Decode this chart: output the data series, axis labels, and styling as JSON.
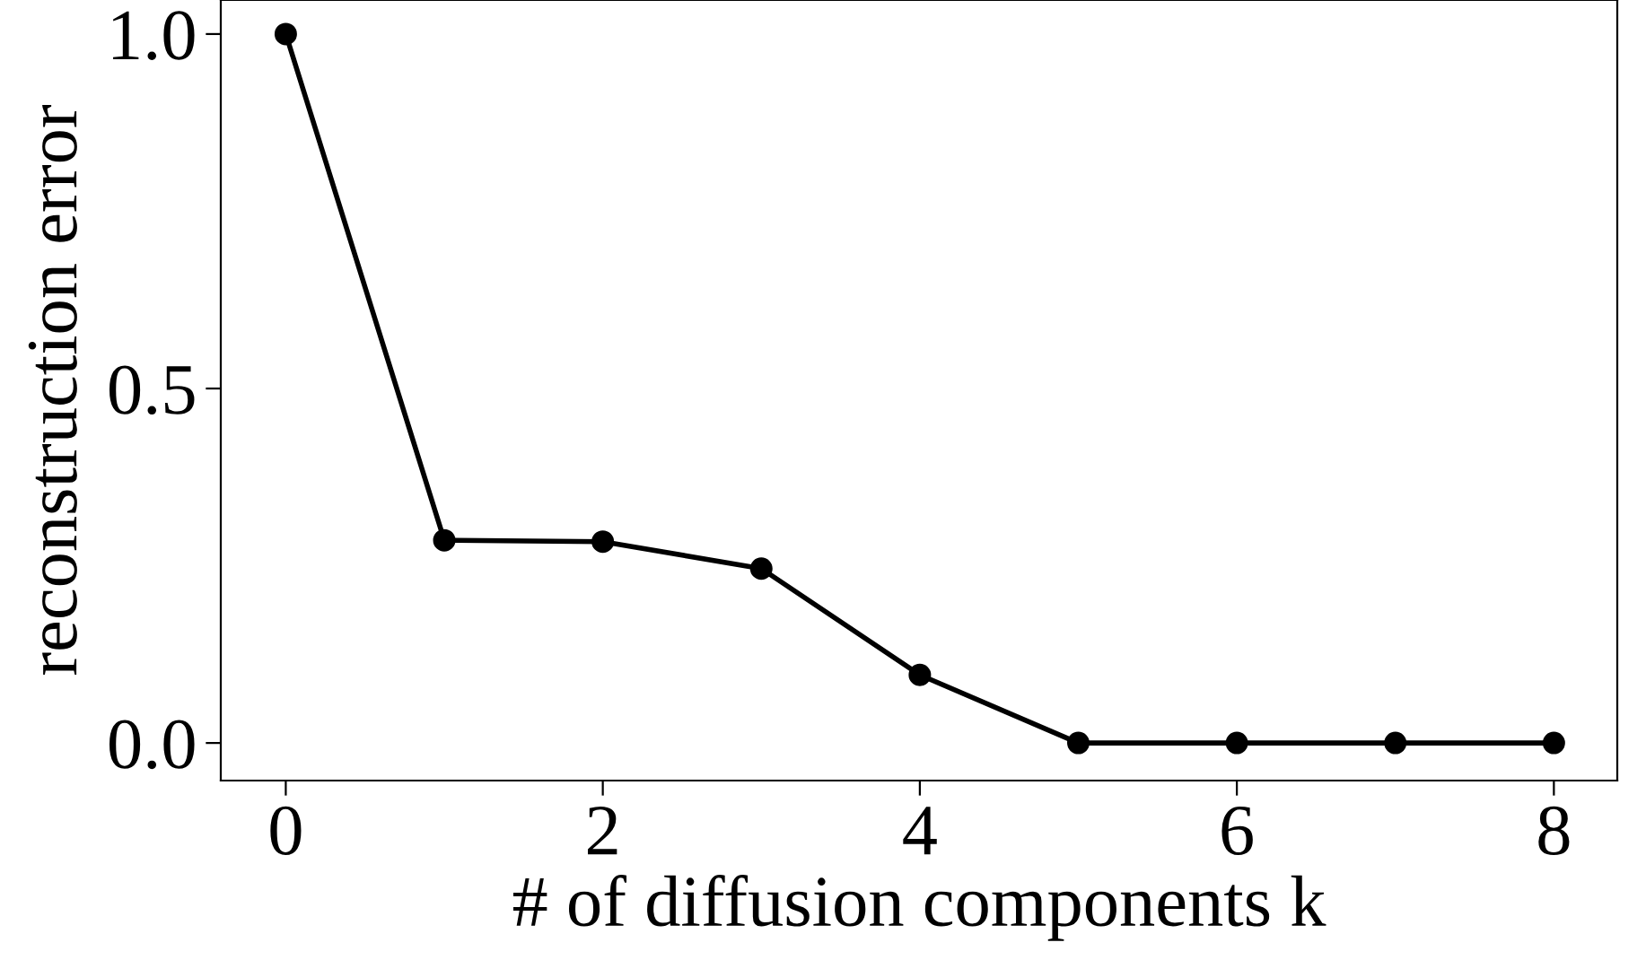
{
  "chart_data": {
    "type": "line",
    "xlabel": "# of diffusion components k",
    "ylabel": "reconstruction error",
    "x": [
      0,
      1,
      2,
      3,
      4,
      5,
      6,
      7,
      8
    ],
    "series": [
      {
        "color": "#000000",
        "values": [
          1.0,
          0.286,
          0.284,
          0.246,
          0.096,
          0.0,
          0.0,
          0.0,
          0.0
        ]
      }
    ],
    "xlim": [
      -0.41,
      8.4
    ],
    "ylim": [
      -0.053,
      1.048
    ],
    "xticks": [
      0,
      2,
      4,
      6,
      8
    ],
    "yticks": [
      {
        "value": 0,
        "label": "0.0"
      },
      0.5,
      {
        "value": 1,
        "label": "1.0"
      }
    ],
    "grid": false,
    "marker": "circle",
    "line_style": "solid"
  }
}
